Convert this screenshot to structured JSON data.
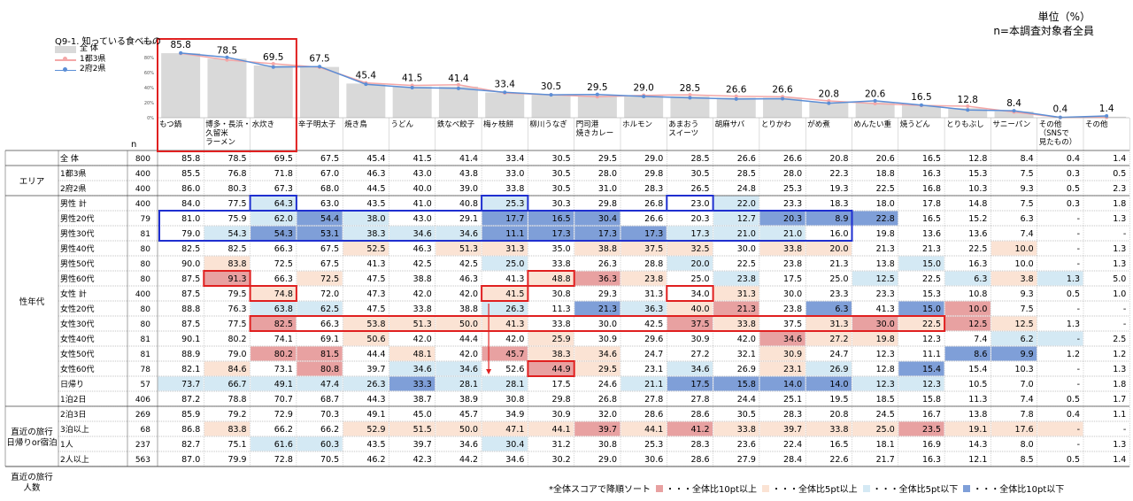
{
  "header": {
    "unit": "単位（%）",
    "base": "n=本調査対象者全員",
    "question": "Q9-1. 知っている食べもの"
  },
  "legend": [
    {
      "label": "全 体",
      "color": "#d9d9d9",
      "kind": "bar"
    },
    {
      "label": "1都3県",
      "color": "#f4a7a7",
      "kind": "line"
    },
    {
      "label": "2府2県",
      "color": "#5b8ed6",
      "kind": "line"
    }
  ],
  "footnote": {
    "sort": "*全体スコアで降順ソート",
    "items": [
      {
        "label": "・・・全体比10pt以上",
        "color": "#e8a1a1"
      },
      {
        "label": "・・・全体比5pt以上",
        "color": "#fbe3d4"
      },
      {
        "label": "・・・全体比5pt以下",
        "color": "#d4e9f4"
      },
      {
        "label": "・・・全体比10pt以下",
        "color": "#7f9fd8"
      }
    ]
  },
  "chart_data": {
    "type": "bar",
    "ylim": [
      0,
      100
    ],
    "yticks": [
      "0%",
      "20%",
      "40%",
      "60%",
      "80%",
      "100%"
    ],
    "n_label": "n",
    "categories": [
      "もつ鍋",
      "博多・長浜・久留米ラーメン",
      "水炊き",
      "辛子明太子",
      "焼き鳥",
      "うどん",
      "鉄なべ餃子",
      "梅ヶ枝餅",
      "柳川うなぎ",
      "門司港焼きカレー",
      "ホルモン",
      "あまおうスイーツ",
      "胡麻サバ",
      "とりかわ",
      "がめ煮",
      "めんたい重",
      "焼うどん",
      "とりもぶし",
      "サニーパン",
      "その他（SNSで見たもの）",
      "その他"
    ],
    "category_lines": [
      [
        "もつ鍋"
      ],
      [
        "博多・長浜・",
        "久留米",
        "ラーメン"
      ],
      [
        "水炊き"
      ],
      [
        "辛子明太子"
      ],
      [
        "焼き鳥"
      ],
      [
        "うどん"
      ],
      [
        "鉄なべ餃子"
      ],
      [
        "梅ヶ枝餅"
      ],
      [
        "柳川うなぎ"
      ],
      [
        "門司港",
        "焼きカレー"
      ],
      [
        "ホルモン"
      ],
      [
        "あまおう",
        "スイーツ"
      ],
      [
        "胡麻サバ"
      ],
      [
        "とりかわ"
      ],
      [
        "がめ煮"
      ],
      [
        "めんたい重"
      ],
      [
        "焼うどん"
      ],
      [
        "とりもぶし"
      ],
      [
        "サニーパン"
      ],
      [
        "その他",
        "（SNSで",
        "見たもの）"
      ],
      [
        "その他"
      ]
    ],
    "bar_labels": [
      "85.8",
      "78.5",
      "69.5",
      "67.5",
      "45.4",
      "41.5",
      "41.4",
      "33.4",
      "30.5",
      "29.5",
      "29.0",
      "28.5",
      "26.6",
      "26.6",
      "20.8",
      "20.6",
      "16.5",
      "12.8",
      "8.4",
      "0.4",
      "1.4"
    ],
    "series": [
      {
        "name": "全 体",
        "values": [
          85.8,
          78.5,
          69.5,
          67.5,
          45.4,
          41.5,
          41.4,
          33.4,
          30.5,
          29.5,
          29.0,
          28.5,
          26.6,
          26.6,
          20.8,
          20.6,
          16.5,
          12.8,
          8.4,
          0.4,
          1.4
        ]
      },
      {
        "name": "1都3県",
        "values": [
          85.5,
          76.8,
          71.8,
          67.0,
          46.3,
          43.0,
          43.8,
          33.0,
          30.5,
          28.0,
          29.8,
          30.5,
          28.5,
          28.0,
          22.3,
          18.8,
          16.3,
          15.3,
          7.5,
          0.3,
          0.5
        ]
      },
      {
        "name": "2府2県",
        "values": [
          86.0,
          80.3,
          67.3,
          68.0,
          44.5,
          40.0,
          39.0,
          33.8,
          30.5,
          31.0,
          28.3,
          26.5,
          24.8,
          25.3,
          19.3,
          22.5,
          16.8,
          10.3,
          9.3,
          0.5,
          2.3
        ]
      }
    ],
    "table": {
      "groups": [
        {
          "label": [
            "エリア"
          ],
          "start": 1,
          "len": 2
        },
        {
          "label": [
            "性年代"
          ],
          "start": 3,
          "len": 14
        },
        {
          "label": [
            "直近の旅行",
            "日帰りor宿泊"
          ],
          "start": 17,
          "len": 4
        },
        {
          "label": [
            "直近の旅行",
            "人数"
          ],
          "start": 21,
          "len": 2
        }
      ],
      "rows": [
        {
          "label": "全 体",
          "n": "800",
          "values": [
            "85.8",
            "78.5",
            "69.5",
            "67.5",
            "45.4",
            "41.5",
            "41.4",
            "33.4",
            "30.5",
            "29.5",
            "29.0",
            "28.5",
            "26.6",
            "26.6",
            "20.8",
            "20.6",
            "16.5",
            "12.8",
            "8.4",
            "0.4",
            "1.4"
          ],
          "shade": "000000000000000000000"
        },
        {
          "label": "1都3県",
          "n": "400",
          "values": [
            "85.5",
            "76.8",
            "71.8",
            "67.0",
            "46.3",
            "43.0",
            "43.8",
            "33.0",
            "30.5",
            "28.0",
            "29.8",
            "30.5",
            "28.5",
            "28.0",
            "22.3",
            "18.8",
            "16.3",
            "15.3",
            "7.5",
            "0.3",
            "0.5"
          ],
          "shade": "000000000000000000000"
        },
        {
          "label": "2府2県",
          "n": "400",
          "values": [
            "86.0",
            "80.3",
            "67.3",
            "68.0",
            "44.5",
            "40.0",
            "39.0",
            "33.8",
            "30.5",
            "31.0",
            "28.3",
            "26.5",
            "24.8",
            "25.3",
            "19.3",
            "22.5",
            "16.8",
            "10.3",
            "9.3",
            "0.5",
            "2.3"
          ],
          "shade": "000000000000000000000"
        },
        {
          "label": "男性 計",
          "n": "400",
          "values": [
            "84.0",
            "77.5",
            "64.3",
            "63.0",
            "43.5",
            "41.0",
            "40.8",
            "25.3",
            "30.3",
            "29.8",
            "26.8",
            "23.0",
            "22.0",
            "23.3",
            "18.3",
            "18.0",
            "17.8",
            "14.8",
            "7.5",
            "0.3",
            "1.8"
          ],
          "shade": "003000030000300000000"
        },
        {
          "label": "男性20代",
          "n": "79",
          "values": [
            "81.0",
            "75.9",
            "62.0",
            "54.4",
            "38.0",
            "43.0",
            "29.1",
            "17.7",
            "16.5",
            "30.4",
            "26.6",
            "20.3",
            "12.7",
            "20.3",
            "8.9",
            "22.8",
            "16.5",
            "15.2",
            "6.3",
            "-",
            "1.3"
          ],
          "shade": "003430044400344400000"
        },
        {
          "label": "男性30代",
          "n": "81",
          "values": [
            "79.0",
            "54.3",
            "54.3",
            "53.1",
            "38.3",
            "34.6",
            "34.6",
            "11.1",
            "17.3",
            "17.3",
            "17.3",
            "17.3",
            "21.0",
            "21.0",
            "16.0",
            "19.8",
            "13.6",
            "13.6",
            "7.4",
            "-",
            "-"
          ],
          "shade": "034433344443330000000"
        },
        {
          "label": "男性40代",
          "n": "80",
          "values": [
            "82.5",
            "82.5",
            "66.3",
            "67.5",
            "52.5",
            "46.3",
            "51.3",
            "31.3",
            "35.0",
            "38.8",
            "37.5",
            "32.5",
            "30.0",
            "33.8",
            "20.0",
            "21.3",
            "21.3",
            "22.5",
            "10.0",
            "-",
            "1.3"
          ],
          "shade": "000020220222022000200"
        },
        {
          "label": "男性50代",
          "n": "80",
          "values": [
            "90.0",
            "83.8",
            "72.5",
            "67.5",
            "41.3",
            "42.5",
            "42.5",
            "25.0",
            "33.8",
            "26.3",
            "28.8",
            "20.0",
            "22.5",
            "23.8",
            "21.3",
            "13.8",
            "15.0",
            "16.3",
            "10.0",
            "-",
            "1.3"
          ],
          "shade": "020000030003000030000"
        },
        {
          "label": "男性60代",
          "n": "80",
          "values": [
            "87.5",
            "91.3",
            "66.3",
            "72.5",
            "47.5",
            "38.8",
            "46.3",
            "41.3",
            "48.8",
            "36.3",
            "23.8",
            "25.0",
            "23.8",
            "17.5",
            "25.0",
            "12.5",
            "22.5",
            "6.3",
            "3.8",
            "1.3",
            "5.0"
          ],
          "shade": "010200002120300303230"
        },
        {
          "label": "女性 計",
          "n": "400",
          "values": [
            "87.5",
            "79.5",
            "74.8",
            "72.0",
            "47.3",
            "42.0",
            "42.0",
            "41.5",
            "30.8",
            "29.3",
            "31.3",
            "34.0",
            "31.3",
            "30.0",
            "23.3",
            "23.3",
            "15.3",
            "10.8",
            "9.3",
            "0.5",
            "1.0"
          ],
          "shade": "002000020000200000000"
        },
        {
          "label": "女性20代",
          "n": "80",
          "values": [
            "88.8",
            "76.3",
            "63.8",
            "62.5",
            "47.5",
            "33.8",
            "38.8",
            "26.3",
            "11.3",
            "21.3",
            "36.3",
            "40.0",
            "21.3",
            "23.8",
            "6.3",
            "41.3",
            "15.0",
            "10.0",
            "7.5",
            "-",
            "-"
          ],
          "shade": "003300030432104041000"
        },
        {
          "label": "女性30代",
          "n": "80",
          "values": [
            "87.5",
            "77.5",
            "82.5",
            "66.3",
            "53.8",
            "51.3",
            "50.0",
            "41.3",
            "33.8",
            "30.0",
            "42.5",
            "37.5",
            "33.8",
            "37.5",
            "31.3",
            "30.0",
            "22.5",
            "12.5",
            "12.5",
            "1.3",
            "-"
          ],
          "shade": "001022220001202121200"
        },
        {
          "label": "女性40代",
          "n": "81",
          "values": [
            "90.1",
            "80.2",
            "74.1",
            "69.1",
            "50.6",
            "42.0",
            "44.4",
            "42.0",
            "25.9",
            "30.9",
            "29.6",
            "30.9",
            "42.0",
            "34.6",
            "27.2",
            "19.8",
            "12.3",
            "7.4",
            "6.2",
            "-",
            "2.5"
          ],
          "shade": "000020002000012200330"
        },
        {
          "label": "女性50代",
          "n": "81",
          "values": [
            "88.9",
            "79.0",
            "80.2",
            "81.5",
            "44.4",
            "48.1",
            "42.0",
            "45.7",
            "38.3",
            "34.6",
            "24.7",
            "27.2",
            "32.1",
            "30.9",
            "24.7",
            "12.3",
            "11.1",
            "8.6",
            "9.9",
            "1.2",
            "1.2"
          ],
          "shade": "001102012200020004400"
        },
        {
          "label": "女性60代",
          "n": "78",
          "values": [
            "82.1",
            "84.6",
            "73.1",
            "80.8",
            "39.7",
            "34.6",
            "34.6",
            "52.6",
            "44.9",
            "29.5",
            "23.1",
            "34.6",
            "26.9",
            "23.1",
            "26.9",
            "12.8",
            "15.4",
            "15.4",
            "10.3",
            "-",
            "1.3"
          ],
          "shade": "020103301203023040000"
        },
        {
          "label": "日帰り",
          "n": "57",
          "values": [
            "73.7",
            "66.7",
            "49.1",
            "47.4",
            "26.3",
            "33.3",
            "28.1",
            "28.1",
            "17.5",
            "24.6",
            "21.1",
            "17.5",
            "15.8",
            "14.0",
            "14.0",
            "12.3",
            "12.3",
            "10.5",
            "7.0",
            "-",
            "1.8"
          ],
          "shade": "333334330034444330000"
        },
        {
          "label": "1泊2日",
          "n": "406",
          "values": [
            "87.2",
            "78.8",
            "70.7",
            "68.7",
            "44.3",
            "38.7",
            "38.9",
            "30.8",
            "29.8",
            "26.8",
            "27.8",
            "27.8",
            "24.4",
            "25.1",
            "19.5",
            "18.5",
            "15.8",
            "11.3",
            "7.4",
            "0.5",
            "1.7"
          ],
          "shade": "000000000000000000000"
        },
        {
          "label": "2泊3日",
          "n": "269",
          "values": [
            "85.9",
            "79.2",
            "72.9",
            "70.3",
            "49.1",
            "45.0",
            "45.7",
            "34.9",
            "30.9",
            "32.0",
            "28.6",
            "28.6",
            "30.5",
            "28.3",
            "20.8",
            "24.5",
            "16.7",
            "13.8",
            "7.8",
            "0.4",
            "1.1"
          ],
          "shade": "000000000000000000000"
        },
        {
          "label": "3泊以上",
          "n": "68",
          "values": [
            "86.8",
            "83.8",
            "66.2",
            "66.2",
            "52.9",
            "51.5",
            "50.0",
            "47.1",
            "44.1",
            "39.7",
            "44.1",
            "41.2",
            "33.8",
            "39.7",
            "33.8",
            "25.0",
            "23.5",
            "19.1",
            "17.6",
            "-",
            "-"
          ],
          "shade": "020022222121222212220"
        },
        {
          "label": "1人",
          "n": "237",
          "values": [
            "82.7",
            "75.1",
            "61.6",
            "60.3",
            "43.5",
            "39.7",
            "34.6",
            "30.4",
            "31.2",
            "30.8",
            "25.3",
            "28.3",
            "23.6",
            "22.4",
            "16.5",
            "18.1",
            "16.9",
            "14.3",
            "8.0",
            "-",
            "1.3"
          ],
          "shade": "003300030000000000000"
        },
        {
          "label": "2人以上",
          "n": "563",
          "values": [
            "87.0",
            "79.9",
            "72.8",
            "70.5",
            "46.2",
            "42.3",
            "44.2",
            "34.6",
            "30.2",
            "29.0",
            "30.6",
            "28.6",
            "27.9",
            "28.4",
            "22.6",
            "21.7",
            "16.3",
            "12.1",
            "8.5",
            "0.5",
            "1.4"
          ],
          "shade": "000000000000000000000"
        }
      ],
      "shade_colors": {
        "1": "#e8a1a1",
        "2": "#fbe3d4",
        "3": "#d4e9f4",
        "4": "#7f9fd8"
      }
    }
  }
}
